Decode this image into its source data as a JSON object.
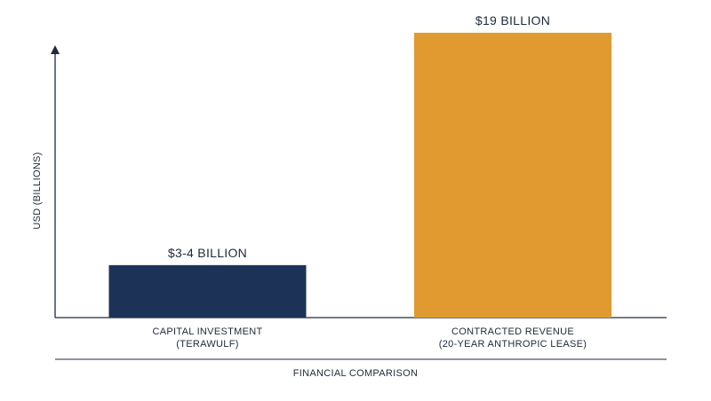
{
  "chart_data": {
    "type": "bar",
    "title": "",
    "xlabel": "FINANCIAL COMPARISON",
    "ylabel": "USD (BILLIONS)",
    "ylim": [
      0,
      20
    ],
    "grid": false,
    "categories": [
      [
        "CAPITAL INVESTMENT",
        "(TERAWULF)"
      ],
      [
        "CONTRACTED REVENUE",
        "(20-YEAR ANTHROPIC LEASE)"
      ]
    ],
    "values": [
      3.5,
      19
    ],
    "value_labels": [
      "$3-4 BILLION",
      "$19 BILLION"
    ],
    "colors": [
      "#1c3357",
      "#e09a2f"
    ]
  }
}
